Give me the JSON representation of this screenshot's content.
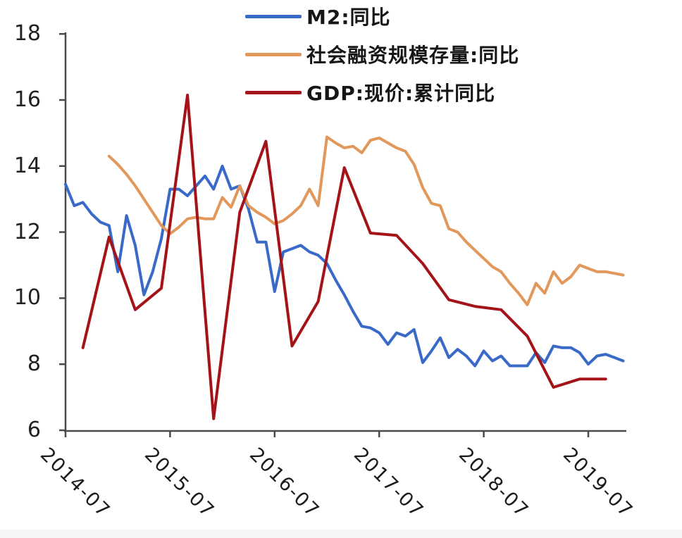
{
  "chart_data": {
    "type": "line",
    "title": "",
    "x_axis": {
      "tick_labels": [
        "2014-07",
        "2015-07",
        "2016-07",
        "2017-07",
        "2018-07",
        "2019-07"
      ],
      "tick_month_indices": [
        0,
        12,
        24,
        36,
        48,
        60
      ],
      "start_month": "2014-07",
      "end_month": "2019-11"
    },
    "y_axis": {
      "ticks": [
        "6",
        "8",
        "10",
        "12",
        "14",
        "16",
        "18"
      ],
      "min": 6,
      "max": 18,
      "grid": false
    },
    "legend_position": "top-center",
    "series": [
      {
        "name": "M2:同比",
        "color": "#3A6AC8",
        "frequency": "monthly",
        "start_month_index": 0,
        "month_step": 1,
        "values": [
          13.45,
          12.8,
          12.9,
          12.55,
          12.3,
          12.2,
          10.8,
          12.5,
          11.6,
          10.1,
          10.8,
          11.8,
          13.3,
          13.3,
          13.1,
          13.4,
          13.7,
          13.3,
          14.0,
          13.3,
          13.4,
          12.7,
          11.7,
          11.7,
          10.2,
          11.4,
          11.5,
          11.6,
          11.4,
          11.3,
          11.05,
          10.55,
          10.1,
          9.6,
          9.15,
          9.1,
          8.95,
          8.6,
          8.95,
          8.85,
          9.05,
          8.05,
          8.4,
          8.8,
          8.2,
          8.45,
          8.25,
          7.95,
          8.4,
          8.1,
          8.25,
          7.95,
          7.95,
          7.95,
          8.35,
          8.05,
          8.55,
          8.5,
          8.5,
          8.35,
          8.0,
          8.25,
          8.3,
          8.2,
          8.1
        ]
      },
      {
        "name": "社会融资规模存量:同比",
        "color": "#E2985A",
        "frequency": "monthly",
        "start_month_index": 5,
        "month_step": 1,
        "values": [
          14.3,
          14.05,
          13.75,
          13.4,
          13.0,
          12.6,
          12.2,
          11.95,
          12.15,
          12.4,
          12.45,
          12.4,
          12.4,
          13.05,
          12.75,
          13.4,
          12.8,
          12.6,
          12.45,
          12.25,
          12.35,
          12.55,
          12.8,
          13.3,
          12.8,
          14.88,
          14.7,
          14.55,
          14.6,
          14.4,
          14.78,
          14.85,
          14.7,
          14.55,
          14.45,
          14.05,
          13.35,
          12.87,
          12.8,
          12.1,
          12.0,
          11.7,
          11.45,
          11.2,
          10.95,
          10.8,
          10.45,
          10.15,
          9.8,
          10.45,
          10.15,
          10.8,
          10.45,
          10.65,
          11.0,
          10.9,
          10.8,
          10.8,
          10.75,
          10.7
        ]
      },
      {
        "name": "GDP:现价:累计同比",
        "color": "#A41318",
        "frequency": "quarterly",
        "start_month_index": 2,
        "month_step": 3,
        "values": [
          8.5,
          11.85,
          9.65,
          10.3,
          16.15,
          6.35,
          12.6,
          14.75,
          8.55,
          9.9,
          13.95,
          11.97,
          11.9,
          11.05,
          9.95,
          9.75,
          9.65,
          8.85,
          7.3,
          7.55,
          7.55
        ]
      }
    ]
  },
  "style": {
    "axis_color": "#4a4a4a",
    "background": "#ffffff"
  }
}
